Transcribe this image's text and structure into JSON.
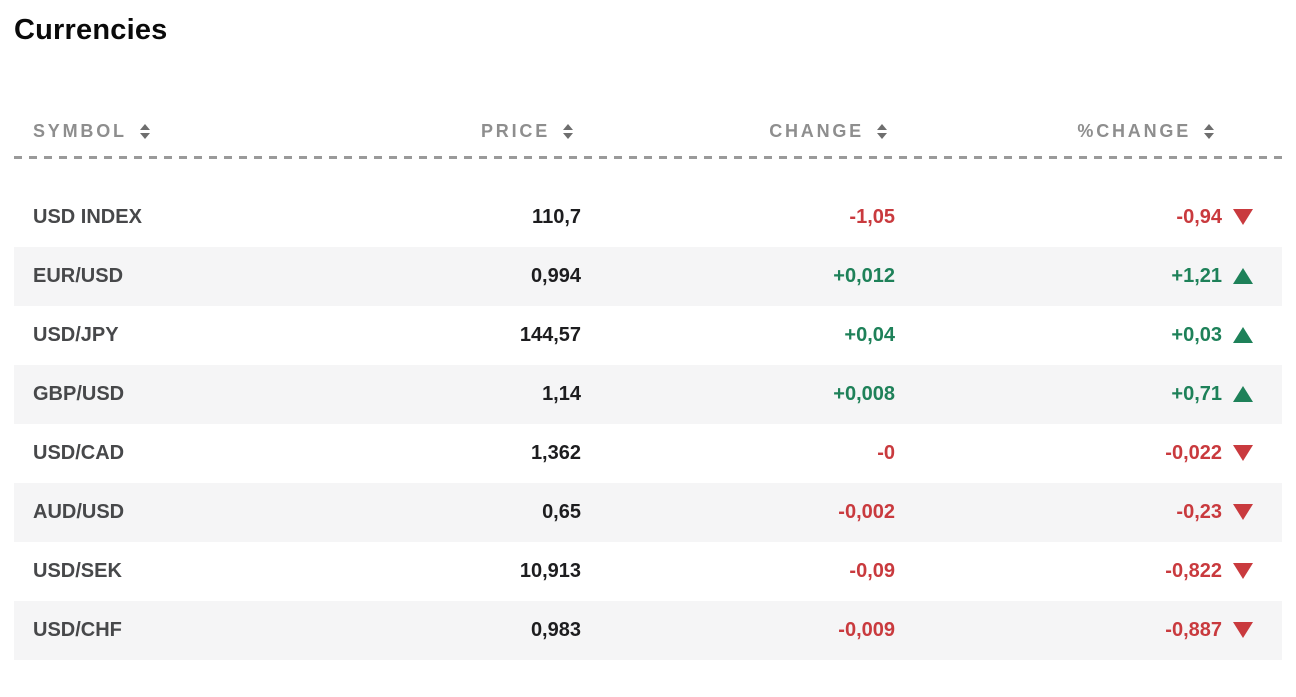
{
  "page_title": "Currencies",
  "colors": {
    "positive": "#1e8159",
    "negative": "#c93a3e",
    "header_text": "#8e8e8e",
    "symbol_text": "#47484a",
    "price_text": "#1d1d1f",
    "alt_row_bg": "#f5f5f6"
  },
  "table": {
    "columns": [
      {
        "label": "SYMBOL"
      },
      {
        "label": "PRICE"
      },
      {
        "label": "CHANGE"
      },
      {
        "label": "%CHANGE"
      }
    ],
    "rows": [
      {
        "symbol": "USD INDEX",
        "price": "110,7",
        "change": "-1,05",
        "pct_change": "-0,94",
        "direction": "down"
      },
      {
        "symbol": "EUR/USD",
        "price": "0,994",
        "change": "+0,012",
        "pct_change": "+1,21",
        "direction": "up"
      },
      {
        "symbol": "USD/JPY",
        "price": "144,57",
        "change": "+0,04",
        "pct_change": "+0,03",
        "direction": "up"
      },
      {
        "symbol": "GBP/USD",
        "price": "1,14",
        "change": "+0,008",
        "pct_change": "+0,71",
        "direction": "up"
      },
      {
        "symbol": "USD/CAD",
        "price": "1,362",
        "change": "-0",
        "pct_change": "-0,022",
        "direction": "down"
      },
      {
        "symbol": "AUD/USD",
        "price": "0,65",
        "change": "-0,002",
        "pct_change": "-0,23",
        "direction": "down"
      },
      {
        "symbol": "USD/SEK",
        "price": "10,913",
        "change": "-0,09",
        "pct_change": "-0,822",
        "direction": "down"
      },
      {
        "symbol": "USD/CHF",
        "price": "0,983",
        "change": "-0,009",
        "pct_change": "-0,887",
        "direction": "down"
      }
    ]
  },
  "chart_data": {
    "type": "table",
    "title": "Currencies",
    "columns": [
      "SYMBOL",
      "PRICE",
      "CHANGE",
      "%CHANGE"
    ],
    "rows": [
      [
        "USD INDEX",
        "110,7",
        "-1,05",
        "-0,94",
        "down"
      ],
      [
        "EUR/USD",
        "0,994",
        "+0,012",
        "+1,21",
        "up"
      ],
      [
        "USD/JPY",
        "144,57",
        "+0,04",
        "+0,03",
        "up"
      ],
      [
        "GBP/USD",
        "1,14",
        "+0,008",
        "+0,71",
        "up"
      ],
      [
        "USD/CAD",
        "1,362",
        "-0",
        "-0,022",
        "down"
      ],
      [
        "AUD/USD",
        "0,65",
        "-0,002",
        "-0,23",
        "down"
      ],
      [
        "USD/SEK",
        "10,913",
        "-0,09",
        "-0,822",
        "down"
      ],
      [
        "USD/CHF",
        "0,983",
        "-0,009",
        "-0,887",
        "down"
      ]
    ],
    "notes": "Decimal comma formatting; direction column indicates red down / green up triangle"
  }
}
